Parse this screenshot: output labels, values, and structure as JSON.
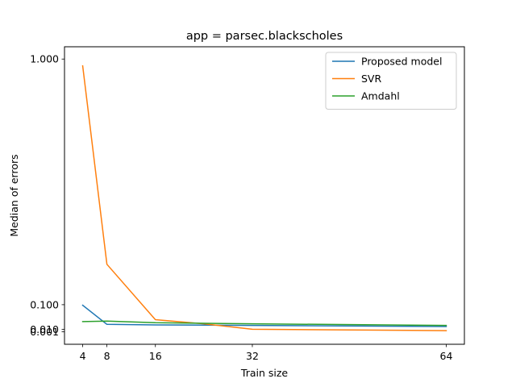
{
  "chart_data": {
    "type": "line",
    "title": "app = parsec.blackscholes",
    "xlabel": "Train size",
    "ylabel": "Median of errors",
    "x_ticks": [
      4,
      8,
      16,
      32,
      64
    ],
    "y_ticks": [
      {
        "value": 0.001,
        "label": "0.001"
      },
      {
        "value": 0.01,
        "label": "0.010"
      },
      {
        "value": 0.1,
        "label": "0.100"
      },
      {
        "value": 1.0,
        "label": "1.000"
      }
    ],
    "xlim": [
      1.0,
      67.0
    ],
    "ylim": [
      -0.045,
      1.045
    ],
    "grid": false,
    "legend_position": "top-right",
    "series": [
      {
        "name": "Proposed model",
        "color": "#1f77b4",
        "x": [
          4,
          8,
          16,
          32,
          64
        ],
        "y": [
          0.098,
          0.028,
          0.026,
          0.024,
          0.02
        ]
      },
      {
        "name": "SVR",
        "color": "#ff7f0e",
        "x": [
          4,
          8,
          16,
          24,
          32,
          64
        ],
        "y": [
          0.975,
          0.248,
          0.045,
          0.03,
          0.01,
          0.005
        ]
      },
      {
        "name": "Amdahl",
        "color": "#2ca02c",
        "x": [
          4,
          8,
          16,
          32,
          64
        ],
        "y": [
          0.038,
          0.04,
          0.034,
          0.03,
          0.024
        ]
      }
    ]
  }
}
